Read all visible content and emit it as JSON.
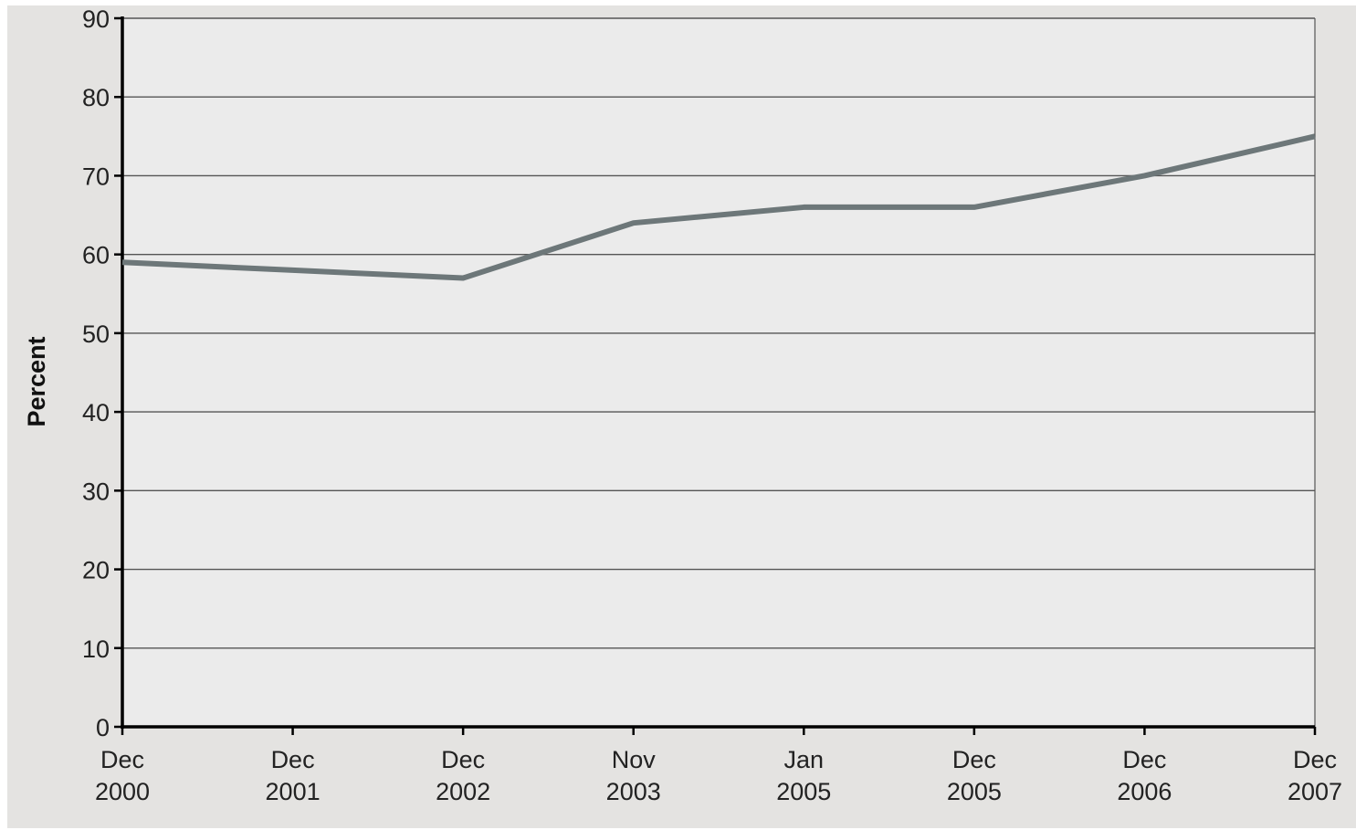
{
  "chart_data": {
    "type": "line",
    "title": "",
    "xlabel": "",
    "ylabel": "Percent",
    "ylim": [
      0,
      90
    ],
    "yticks": [
      0,
      10,
      20,
      30,
      40,
      50,
      60,
      70,
      80,
      90
    ],
    "categories": [
      {
        "month": "Dec",
        "year": "2000"
      },
      {
        "month": "Dec",
        "year": "2001"
      },
      {
        "month": "Dec",
        "year": "2002"
      },
      {
        "month": "Nov",
        "year": "2003"
      },
      {
        "month": "Jan",
        "year": "2005"
      },
      {
        "month": "Dec",
        "year": "2005"
      },
      {
        "month": "Dec",
        "year": "2006"
      },
      {
        "month": "Dec",
        "year": "2007"
      }
    ],
    "series": [
      {
        "values": [
          59,
          58,
          57,
          64,
          66,
          66,
          70,
          75
        ]
      }
    ],
    "grid": true,
    "legend": "none",
    "colors": {
      "background": "#e4e3e1",
      "plot_background": "#ebebeb",
      "line": "#6d7779",
      "grid": "#555555",
      "axis": "#000000"
    }
  }
}
